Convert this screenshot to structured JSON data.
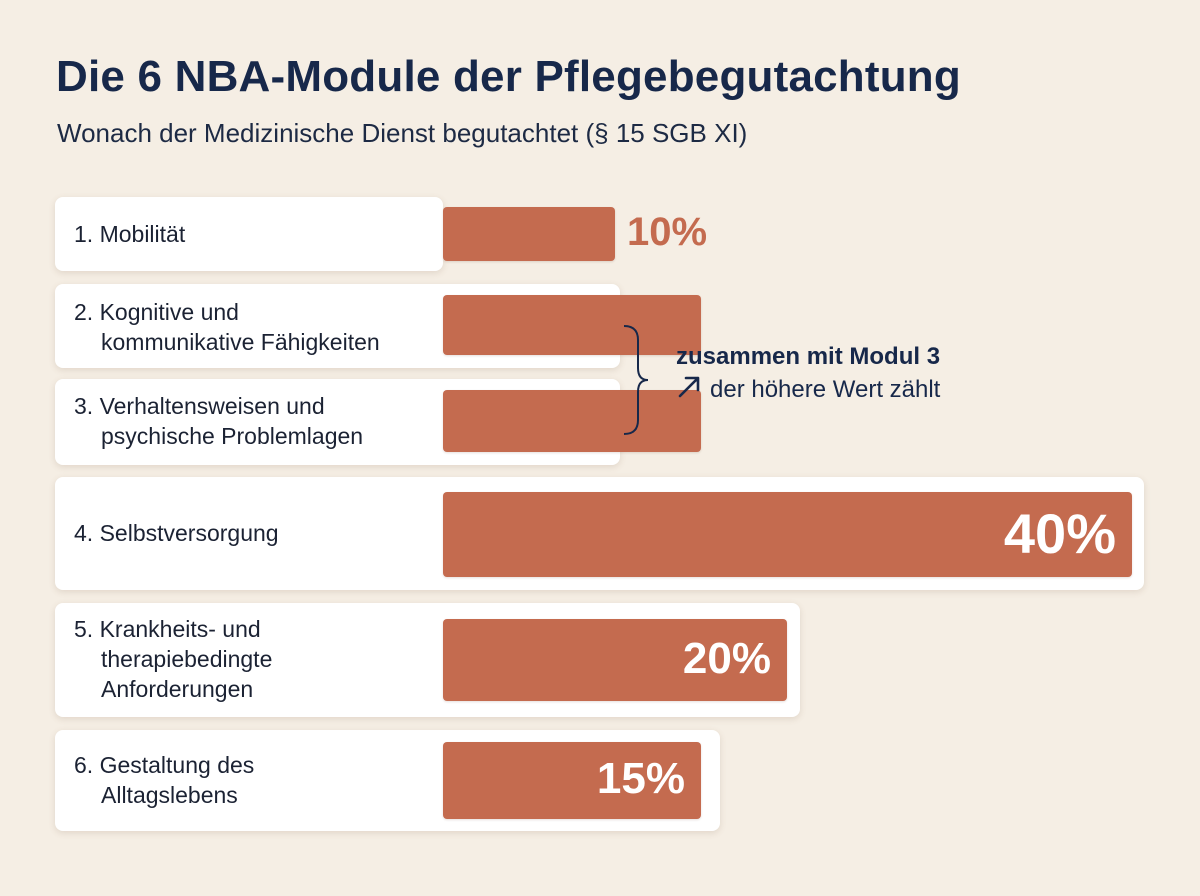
{
  "title": "Die 6 NBA-Module der Pflegebegutachtung",
  "subtitle": "Wonach der Medizinische Dienst begutachtet (§ 15 SGB XI)",
  "note": {
    "line1": "zusammen mit Modul 3",
    "line2": "der höhere Wert zählt"
  },
  "colors": {
    "bar": "#c46b4f",
    "background": "#f5eee4",
    "title": "#17284a"
  },
  "chart_data": {
    "type": "bar",
    "orientation": "horizontal",
    "unit": "%",
    "xlim": [
      0,
      40
    ],
    "categories": [
      "1. Mobilität",
      "2. Kognitive und kommunikative Fähigkeiten",
      "3. Verhaltensweisen und psychische Problemlagen",
      "4. Selbstversorgung",
      "5. Krankheits- und therapiebedingte Anforderungen",
      "6. Gestaltung des Alltagslebens"
    ],
    "values": [
      10,
      15,
      15,
      40,
      20,
      15
    ],
    "data_labels": [
      "10%",
      "",
      "",
      "40%",
      "20%",
      "15%"
    ],
    "label_lines": [
      [
        "1. Mobilität"
      ],
      [
        "2. Kognitive und",
        "kommunikative Fähigkeiten"
      ],
      [
        "3. Verhaltensweisen und",
        "psychische Problemlagen"
      ],
      [
        "4. Selbstversorgung"
      ],
      [
        "5. Krankheits- und",
        "therapiebedingte",
        "Anforderungen"
      ],
      [
        "6. Gestaltung des",
        "Alltagslebens"
      ]
    ]
  }
}
